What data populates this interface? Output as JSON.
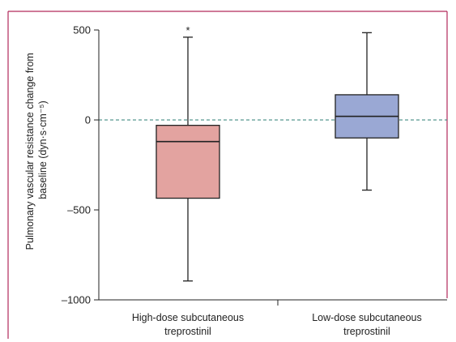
{
  "chart_data": {
    "type": "box",
    "title": "",
    "xlabel": "",
    "ylabel": "Pulmonary vascular resistance change from baseline (dyn·s·cm⁻⁵)",
    "ylabel_lines": [
      "Pulmonary vascular resistance change from",
      "baseline (dyn·s·cm⁻⁵)"
    ],
    "ylim": [
      -1000,
      500
    ],
    "yticks": [
      500,
      0,
      -500,
      -1000
    ],
    "ytick_labels": [
      "500",
      "0",
      "–500",
      "–1000"
    ],
    "reference_line": 0,
    "categories": [
      "High-dose subcutaneous treprostinil",
      "Low-dose subcutaneous treprostinil"
    ],
    "category_lines": [
      [
        "High-dose subcutaneous",
        "treprostinil"
      ],
      [
        "Low-dose subcutaneous",
        "treprostinil"
      ]
    ],
    "boxes": [
      {
        "whisker_low": -895,
        "q1": -435,
        "median": -120,
        "q3": -30,
        "whisker_high": 460,
        "color": "#e3a3a0",
        "annotation": "*"
      },
      {
        "whisker_low": -390,
        "q1": -100,
        "median": 20,
        "q3": 140,
        "whisker_high": 485,
        "color": "#9aa8d4",
        "annotation": ""
      }
    ],
    "colors": {
      "frame": "#b22a5a",
      "reference": "#2e7d74",
      "axis": "#222222"
    }
  }
}
